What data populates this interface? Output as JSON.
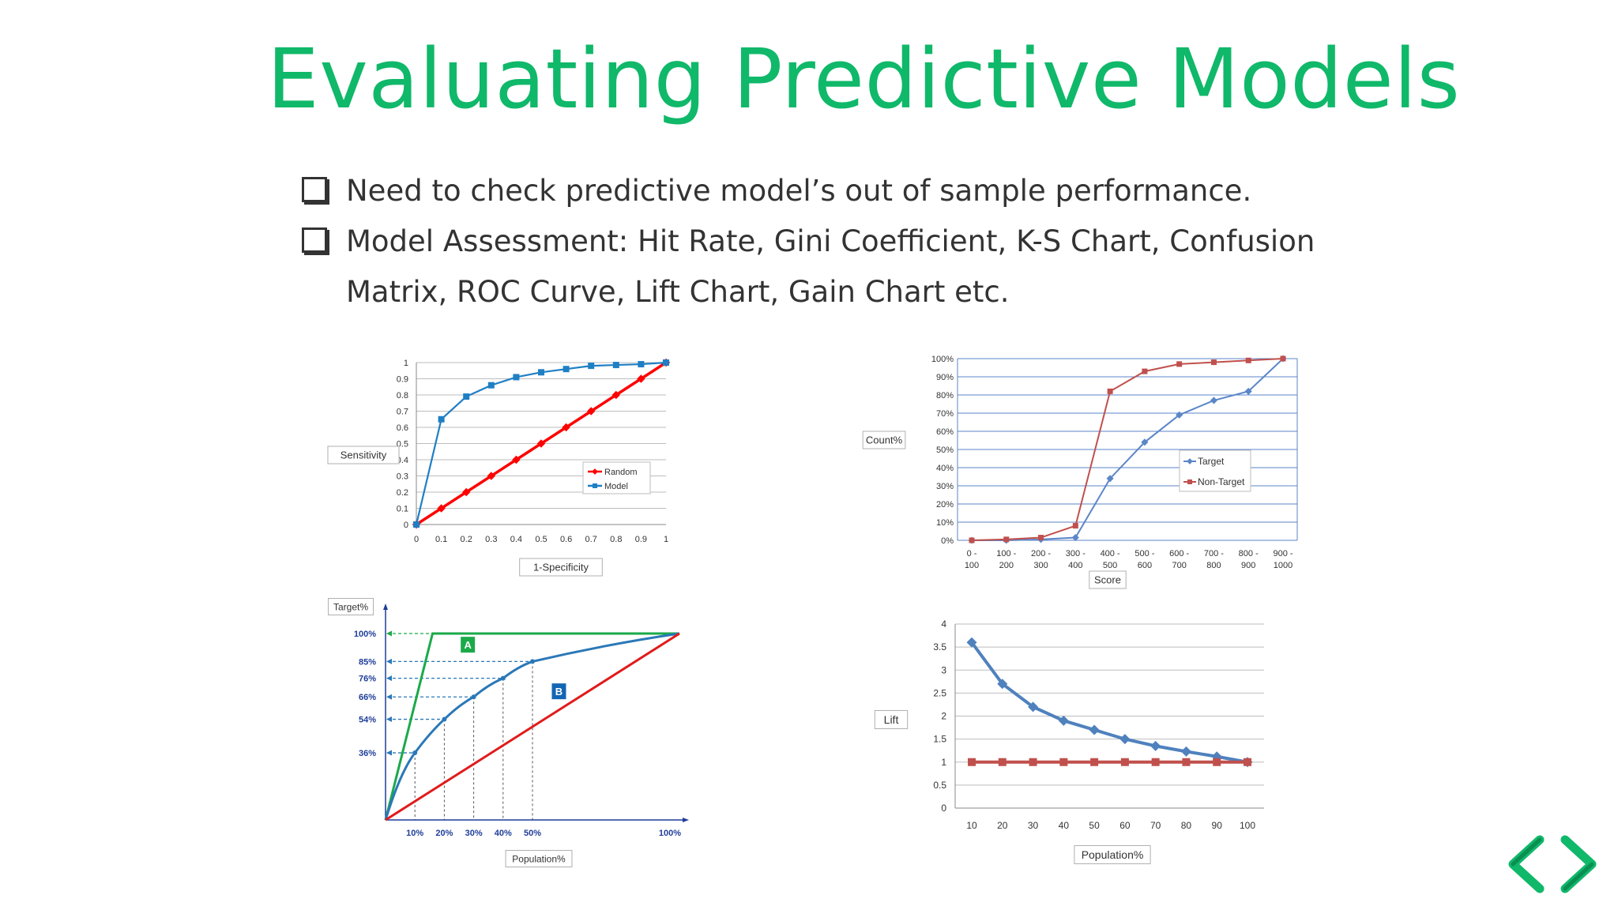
{
  "slide": {
    "title": "Evaluating Predictive Models",
    "bullets": [
      "Need to check predictive model’s out of sample performance.",
      "Model Assessment: Hit Rate, Gini Coefficient, K-S Chart, Confusion Matrix, ROC Curve, Lift Chart, Gain Chart etc."
    ],
    "accent_color": "#10b86a"
  },
  "chart_data": [
    {
      "type": "line",
      "xlabel": "1-Specificity",
      "ylabel": "Sensitivity",
      "xlim": [
        0,
        1
      ],
      "ylim": [
        0,
        1
      ],
      "xticks": [
        "0",
        "0.1",
        "0.2",
        "0.3",
        "0.4",
        "0.5",
        "0.6",
        "0.7",
        "0.8",
        "0.9",
        "1"
      ],
      "yticks": [
        "0",
        "0.1",
        "0.2",
        "0.3",
        "0.4",
        "0.5",
        "0.6",
        "0.7",
        "0.8",
        "0.9",
        "1"
      ],
      "grid": true,
      "legend": "right",
      "series": [
        {
          "name": "Random",
          "color": "#ff0000",
          "marker": "diamond",
          "x": [
            0,
            0.1,
            0.2,
            0.3,
            0.4,
            0.5,
            0.6,
            0.7,
            0.8,
            0.9,
            1
          ],
          "y": [
            0,
            0.1,
            0.2,
            0.3,
            0.4,
            0.5,
            0.6,
            0.7,
            0.8,
            0.9,
            1
          ]
        },
        {
          "name": "Model",
          "color": "#1f7fc4",
          "marker": "square",
          "x": [
            0,
            0.1,
            0.2,
            0.3,
            0.4,
            0.5,
            0.6,
            0.7,
            0.8,
            0.9,
            1
          ],
          "y": [
            0,
            0.65,
            0.79,
            0.86,
            0.91,
            0.94,
            0.96,
            0.98,
            0.985,
            0.99,
            1
          ]
        }
      ]
    },
    {
      "type": "line",
      "xlabel": "Score",
      "ylabel": "Count%",
      "categories": [
        "0 - 100",
        "100 - 200",
        "200 - 300",
        "300 - 400",
        "400 - 500",
        "500 - 600",
        "600 - 700",
        "700 - 800",
        "800 - 900",
        "900 - 1000"
      ],
      "ylim": [
        0,
        100
      ],
      "yticks": [
        "0%",
        "10%",
        "20%",
        "30%",
        "40%",
        "50%",
        "60%",
        "70%",
        "80%",
        "90%",
        "100%"
      ],
      "grid": true,
      "legend": "right",
      "series": [
        {
          "name": "Target",
          "color": "#5b86c8",
          "marker": "diamond",
          "values": [
            0,
            0,
            0.5,
            1.5,
            34,
            54,
            69,
            77,
            82,
            100
          ]
        },
        {
          "name": "Non-Target",
          "color": "#c0504d",
          "marker": "square",
          "values": [
            0,
            0.5,
            1.5,
            8,
            82,
            93,
            97,
            98,
            99,
            100
          ]
        }
      ]
    },
    {
      "type": "line",
      "xlabel": "Population%",
      "ylabel": "Target%",
      "xlim": [
        0,
        100
      ],
      "ylim": [
        0,
        100
      ],
      "xticks": [
        {
          "value": 10,
          "label": "10%"
        },
        {
          "value": 20,
          "label": "20%"
        },
        {
          "value": 30,
          "label": "30%"
        },
        {
          "value": 40,
          "label": "40%"
        },
        {
          "value": 50,
          "label": "50%"
        },
        {
          "value": 100,
          "label": "100%"
        }
      ],
      "yticks": [
        {
          "value": 36,
          "label": "36%"
        },
        {
          "value": 54,
          "label": "54%"
        },
        {
          "value": 66,
          "label": "66%"
        },
        {
          "value": 76,
          "label": "76%"
        },
        {
          "value": 85,
          "label": "85%"
        },
        {
          "value": 100,
          "label": "100%"
        }
      ],
      "annotations": [
        {
          "label": "A",
          "x": 28,
          "y": 94,
          "color": "#1aaa4a"
        },
        {
          "label": "B",
          "x": 59,
          "y": 69,
          "color": "#1366b3"
        }
      ],
      "series": [
        {
          "color": "#1aaa4a",
          "x": [
            0,
            16,
            100
          ],
          "y": [
            0,
            100,
            100
          ]
        },
        {
          "color": "#2a78b8",
          "x": [
            0,
            10,
            20,
            30,
            40,
            50,
            100
          ],
          "y": [
            0,
            36,
            54,
            66,
            76,
            85,
            100
          ]
        },
        {
          "color": "#e11b1b",
          "x": [
            0,
            100
          ],
          "y": [
            0,
            100
          ]
        }
      ]
    },
    {
      "type": "line",
      "xlabel": "Population%",
      "ylabel": "Lift",
      "categories": [
        "10",
        "20",
        "30",
        "40",
        "50",
        "60",
        "70",
        "80",
        "90",
        "100"
      ],
      "ylim": [
        0,
        4
      ],
      "yticks": [
        "0",
        "0.5",
        "1",
        "1.5",
        "2",
        "2.5",
        "3",
        "3.5",
        "4"
      ],
      "grid": true,
      "series": [
        {
          "color": "#4f81bd",
          "marker": "diamond",
          "values": [
            3.6,
            2.7,
            2.2,
            1.9,
            1.7,
            1.5,
            1.35,
            1.23,
            1.12,
            1
          ]
        },
        {
          "color": "#c0504d",
          "marker": "square",
          "values": [
            1,
            1,
            1,
            1,
            1,
            1,
            1,
            1,
            1,
            1
          ]
        }
      ]
    }
  ]
}
